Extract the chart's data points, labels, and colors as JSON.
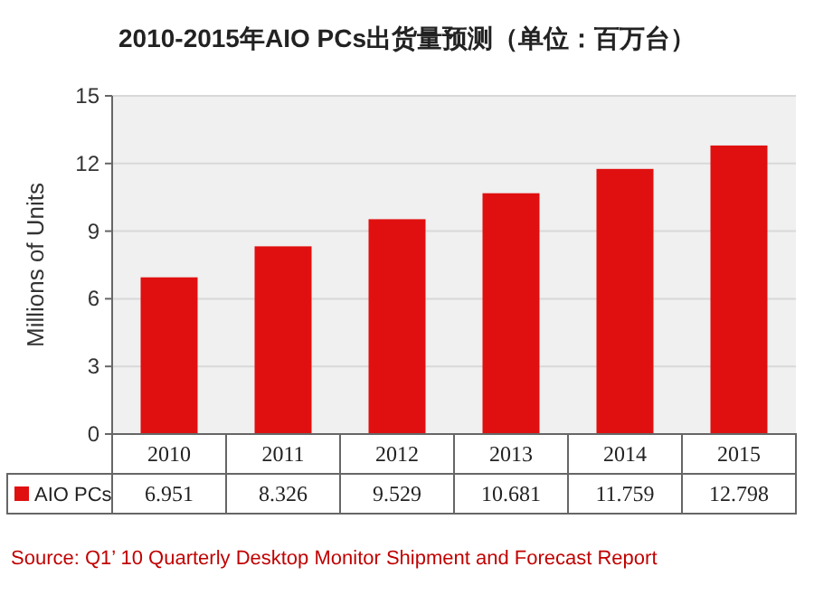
{
  "chart_data": {
    "type": "bar",
    "title": "2010-2015年AIO PCs出货量预测（单位：百万台）",
    "ylabel": "Millions of Units",
    "categories": [
      "2010",
      "2011",
      "2012",
      "2013",
      "2014",
      "2015"
    ],
    "series": [
      {
        "name": "AIO PCs",
        "color": "#e01010",
        "values": [
          6.951,
          8.326,
          9.529,
          10.681,
          11.759,
          12.798
        ]
      }
    ],
    "ylim": [
      0,
      15
    ],
    "yticks": [
      0,
      3,
      6,
      9,
      12,
      15
    ],
    "grid": "y",
    "data_labels": true,
    "legend": "bottom left",
    "annotations": [
      "Source: Q1’ 10 Quarterly Desktop Monitor Shipment and Forecast Report"
    ]
  }
}
